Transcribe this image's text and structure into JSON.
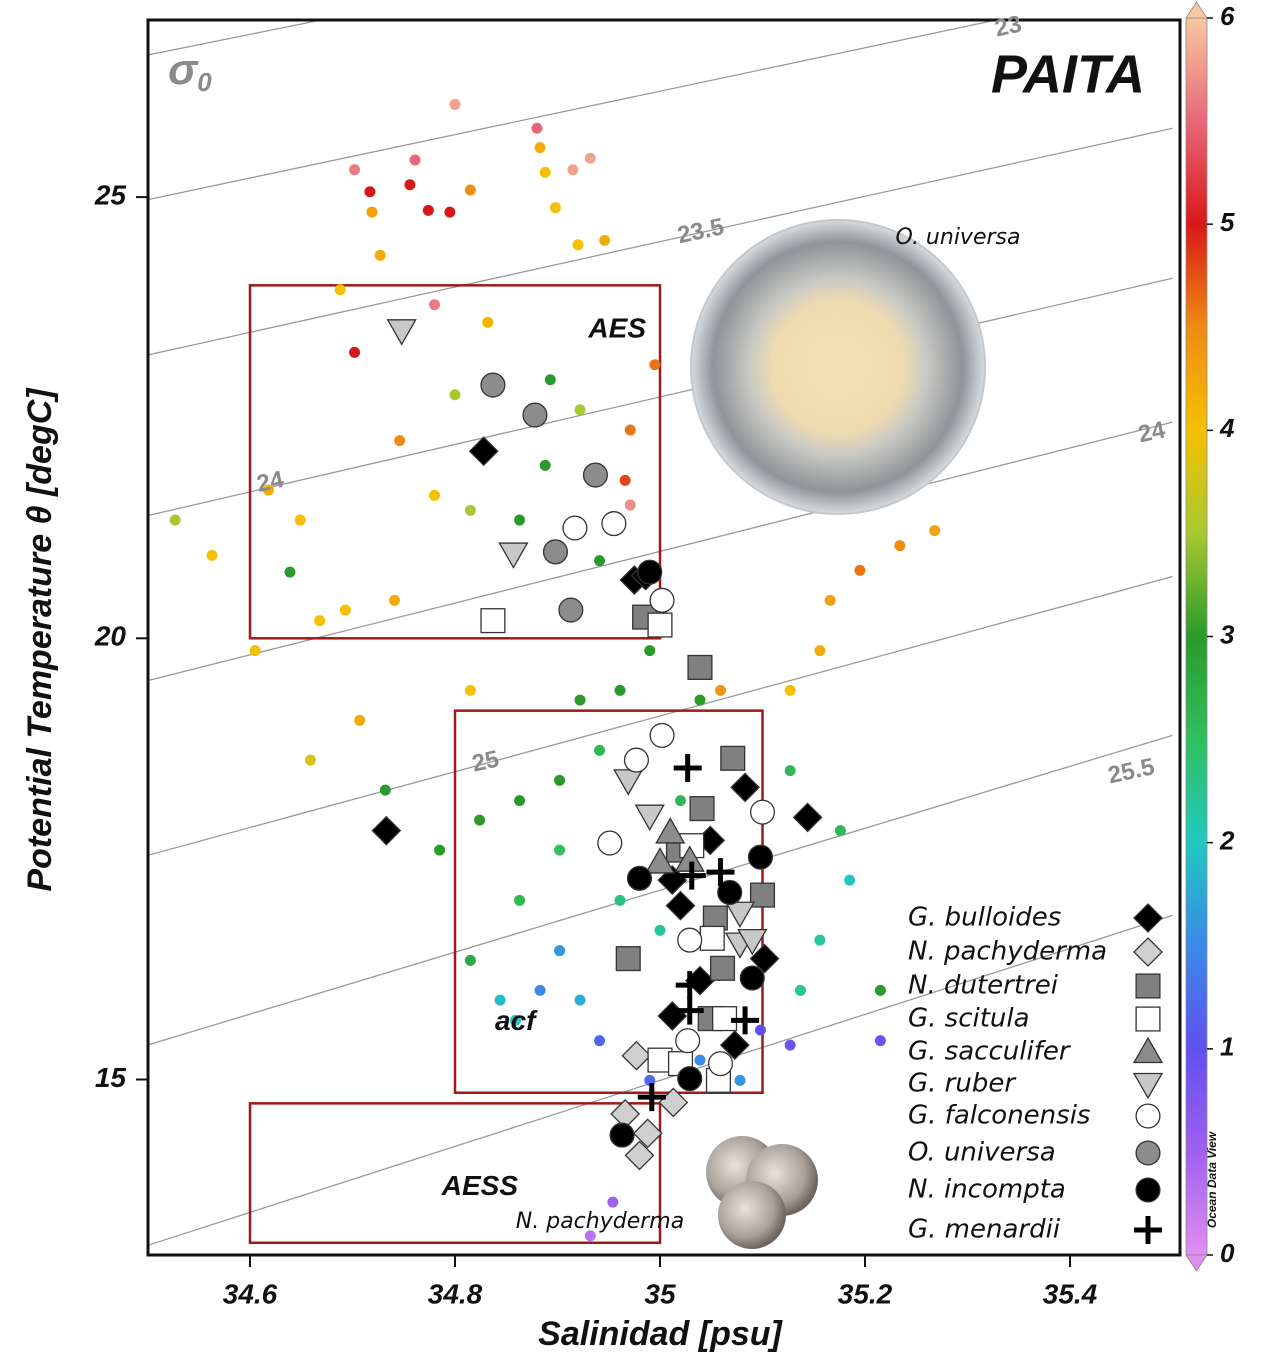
{
  "chart_data": {
    "type": "scatter",
    "title": "PAITA",
    "x_label": "Salinidad [psu]",
    "y_label": "Potential Temperature θ [degC]",
    "xlim": [
      34.5,
      35.5
    ],
    "ylim": [
      13,
      27
    ],
    "xticks": [
      34.6,
      34.8,
      35,
      35.2,
      35.4
    ],
    "yticks": [
      15,
      20,
      25
    ],
    "isopycnal_symbol": {
      "base": "σ",
      "subscript": "0"
    },
    "isopycnal_lines": [
      {
        "x": [
          34.5,
          35.5
        ],
        "y": [
          26.61,
          28.95
        ]
      },
      {
        "x": [
          34.5,
          35.5
        ],
        "y": [
          24.97,
          27.43
        ]
      },
      {
        "x": [
          34.5,
          35.5
        ],
        "y": [
          23.21,
          25.78
        ]
      },
      {
        "x": [
          34.5,
          35.5
        ],
        "y": [
          21.39,
          24.08
        ]
      },
      {
        "x": [
          34.5,
          35.5
        ],
        "y": [
          19.52,
          22.45
        ]
      },
      {
        "x": [
          34.5,
          35.5
        ],
        "y": [
          17.54,
          20.7
        ]
      },
      {
        "x": [
          34.5,
          35.5
        ],
        "y": [
          15.39,
          18.9
        ]
      },
      {
        "x": [
          34.5,
          35.5
        ],
        "y": [
          13.12,
          16.86
        ]
      }
    ],
    "isopycnal_labels": [
      {
        "text": "23",
        "x": 35.34,
        "y": 26.92
      },
      {
        "text": "23.5",
        "x": 35.04,
        "y": 24.6
      },
      {
        "text": "24",
        "x": 35.48,
        "y": 22.32
      },
      {
        "text": "24",
        "x": 34.62,
        "y": 21.76
      },
      {
        "text": "25",
        "x": 34.83,
        "y": 18.59
      },
      {
        "text": "25.5",
        "x": 35.46,
        "y": 18.48
      }
    ],
    "regions": [
      {
        "label": "AES",
        "x": [
          34.6,
          35.0
        ],
        "y": [
          20.0,
          24.0
        ]
      },
      {
        "label": "acf",
        "x": [
          34.8,
          35.1
        ],
        "y": [
          14.85,
          19.18
        ]
      },
      {
        "label": "AESS",
        "x": [
          34.6,
          35.0
        ],
        "y": [
          13.15,
          14.73
        ]
      }
    ],
    "annotations": [
      {
        "text": "O. universa"
      },
      {
        "text": "N. pachyderma"
      }
    ],
    "colorbar": {
      "clim": [
        0,
        6
      ],
      "ticks": [
        0,
        1,
        2,
        3,
        4,
        5,
        6
      ],
      "label": "Ocean Data View",
      "colorscale": [
        [
          0,
          "#df8ef0"
        ],
        [
          0.5,
          "#a060f0"
        ],
        [
          1,
          "#6050f0"
        ],
        [
          1.5,
          "#3a8ae8"
        ],
        [
          2,
          "#20c8c0"
        ],
        [
          2.5,
          "#30c060"
        ],
        [
          3,
          "#2a9a2a"
        ],
        [
          3.5,
          "#a8c830"
        ],
        [
          4,
          "#f5c000"
        ],
        [
          4.5,
          "#f08c10"
        ],
        [
          5,
          "#d81818"
        ],
        [
          5.5,
          "#e86878"
        ],
        [
          6,
          "#f8c8a0"
        ]
      ]
    },
    "colored_points": {
      "x": [
        34.8,
        34.88,
        34.915,
        34.932,
        34.761,
        34.702,
        34.717,
        34.756,
        34.774,
        34.795,
        34.815,
        34.883,
        34.888,
        34.898,
        34.719,
        34.727,
        34.92,
        34.946,
        34.688,
        34.78,
        34.832,
        34.702,
        34.746,
        34.8,
        34.893,
        34.922,
        34.888,
        34.863,
        34.815,
        34.78,
        34.639,
        34.649,
        34.668,
        34.693,
        34.741,
        34.563,
        34.527,
        34.605,
        34.618,
        34.966,
        34.971,
        34.995,
        34.971,
        35.195,
        35.234,
        35.268,
        35.166,
        35.156,
        35.127,
        35.059,
        34.941,
        34.99,
        34.961,
        34.922,
        34.941,
        34.902,
        34.863,
        34.824,
        34.785,
        34.863,
        34.902,
        35.039,
        35.127,
        35.176,
        35.185,
        35.156,
        35.215,
        35.137,
        34.902,
        34.883,
        34.922,
        34.941,
        34.99,
        35.039,
        35.078,
        35.0,
        34.961,
        35.02,
        34.844,
        34.815,
        34.732,
        34.659,
        34.707,
        34.815,
        35.215,
        35.127,
        34.954,
        34.932,
        35.098,
        34.859
      ],
      "y": [
        26.05,
        25.78,
        25.31,
        25.44,
        25.42,
        25.31,
        25.06,
        25.14,
        24.85,
        24.83,
        25.08,
        25.56,
        25.28,
        24.88,
        24.83,
        24.34,
        24.46,
        24.51,
        23.95,
        23.78,
        23.58,
        23.24,
        22.24,
        22.76,
        22.93,
        22.59,
        21.96,
        21.34,
        21.45,
        21.62,
        20.75,
        21.34,
        20.2,
        20.32,
        20.43,
        20.94,
        21.34,
        19.86,
        21.68,
        21.79,
        22.36,
        23.1,
        21.51,
        20.77,
        21.05,
        21.22,
        20.43,
        19.86,
        19.41,
        19.41,
        20.88,
        19.86,
        19.41,
        19.3,
        18.73,
        18.39,
        18.16,
        17.94,
        17.6,
        17.03,
        17.6,
        19.3,
        18.5,
        17.82,
        17.26,
        16.58,
        16.01,
        16.01,
        16.46,
        16.01,
        15.9,
        15.44,
        14.99,
        15.22,
        14.99,
        16.69,
        17.03,
        18.16,
        15.9,
        16.35,
        18.28,
        18.62,
        19.07,
        19.41,
        15.44,
        15.39,
        13.61,
        13.23,
        15.56,
        15.67
      ],
      "values": [
        5.8,
        5.5,
        5.8,
        5.8,
        5.5,
        5.6,
        5,
        5,
        5,
        5,
        4.5,
        4.2,
        4,
        4,
        4.3,
        4.2,
        4,
        4.2,
        4,
        5.6,
        4.1,
        5,
        4.5,
        3.5,
        3,
        3.5,
        3,
        3,
        3.5,
        4,
        3,
        4,
        4,
        4,
        4.2,
        4,
        3.5,
        4,
        4.2,
        4.8,
        4.6,
        4.6,
        5.7,
        4.6,
        4.5,
        4.3,
        4.3,
        4.2,
        4,
        4.4,
        3,
        3,
        3,
        3,
        2.6,
        3,
        3,
        3,
        3,
        2.6,
        2.5,
        3,
        2.6,
        2.6,
        2,
        2.2,
        3,
        2.2,
        1.6,
        1.5,
        1.8,
        1.2,
        1.2,
        1.5,
        1.6,
        2.2,
        2.3,
        2.6,
        1.9,
        2.8,
        3,
        3.8,
        4.2,
        4,
        0.9,
        0.9,
        0.5,
        0.3,
        1.0,
        2.0
      ]
    },
    "series": [
      {
        "name": "G. bulloides",
        "marker": "diamond",
        "color": "#000000",
        "x": [
          34.828,
          34.975,
          34.986,
          35.083,
          35.144,
          34.733,
          35.049,
          35.012,
          35.02,
          35.039,
          35.102,
          35.012,
          35.073
        ],
        "y": [
          22.12,
          20.66,
          20.71,
          18.31,
          17.97,
          17.82,
          17.71,
          17.26,
          16.97,
          16.12,
          16.37,
          15.72,
          15.39
        ]
      },
      {
        "name": "N. pachyderma",
        "marker": "diamond",
        "color": "#cfcfcf",
        "x": [
          34.977,
          34.966,
          34.988,
          34.98,
          35.013
        ],
        "y": [
          15.27,
          14.61,
          14.39,
          14.14,
          14.74
        ]
      },
      {
        "name": "N. dutertrei",
        "marker": "square",
        "color": "#808080",
        "x": [
          34.985,
          35.039,
          35.071,
          35.041,
          35.018,
          35.1,
          35.054,
          34.969,
          35.061,
          35.049
        ],
        "y": [
          20.24,
          19.67,
          18.64,
          18.07,
          17.6,
          17.09,
          16.83,
          16.37,
          16.26,
          15.69
        ]
      },
      {
        "name": "G. scitula",
        "marker": "square",
        "color": "#ffffff",
        "x": [
          34.837,
          35.0,
          35.031,
          35.051,
          35.063,
          35.0,
          35.02,
          35.057
        ],
        "y": [
          20.2,
          20.15,
          17.65,
          16.6,
          15.69,
          15.22,
          15.18,
          14.99
        ]
      },
      {
        "name": "G. sacculifer",
        "marker": "triangle-up",
        "color": "#8c8c8c",
        "x": [
          35.01,
          35.0,
          35.029
        ],
        "y": [
          17.8,
          17.46,
          17.48
        ]
      },
      {
        "name": "G. ruber",
        "marker": "triangle-down",
        "color": "#c8c8c8",
        "x": [
          34.748,
          34.857,
          34.969,
          34.99,
          35.078,
          35.078,
          35.09
        ],
        "y": [
          23.49,
          20.96,
          18.39,
          17.99,
          16.89,
          16.54,
          16.58
        ]
      },
      {
        "name": "G. falconensis",
        "marker": "circle",
        "color": "#ffffff",
        "x": [
          34.917,
          34.955,
          35.002,
          35.002,
          34.977,
          35.1,
          34.951,
          35.029,
          35.059,
          35.027
        ],
        "y": [
          21.25,
          21.3,
          20.43,
          18.9,
          18.62,
          18.03,
          17.68,
          16.58,
          15.18,
          15.44
        ]
      },
      {
        "name": "O. universa",
        "marker": "circle",
        "color": "#8c8c8c",
        "x": [
          34.837,
          34.878,
          34.937,
          34.898,
          34.913
        ],
        "y": [
          22.87,
          22.53,
          21.85,
          20.98,
          20.32
        ]
      },
      {
        "name": "N. incompta",
        "marker": "circle",
        "color": "#000000",
        "x": [
          34.99,
          34.98,
          35.098,
          35.068,
          35.09,
          35.029,
          34.963
        ],
        "y": [
          20.75,
          17.28,
          17.52,
          17.12,
          16.15,
          15.01,
          14.37
        ]
      },
      {
        "name": "G. menardii",
        "marker": "plus",
        "color": "#000000",
        "x": [
          35.027,
          35.031,
          35.059,
          35.029,
          35.083,
          35.029,
          34.992
        ],
        "y": [
          18.53,
          17.31,
          17.35,
          16.07,
          15.67,
          15.78,
          14.8
        ]
      }
    ]
  }
}
